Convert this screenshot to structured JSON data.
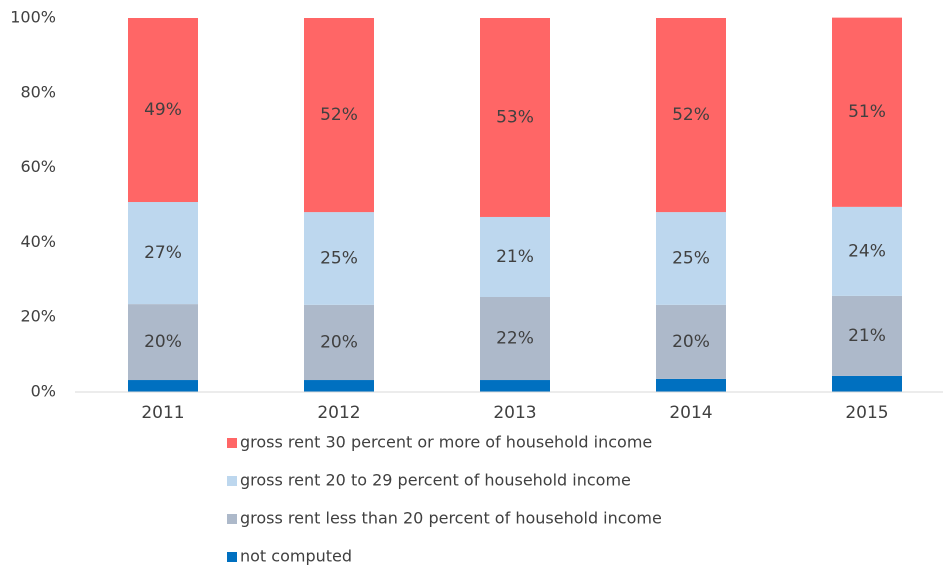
{
  "chart_data": {
    "type": "stacked_bar",
    "categories": [
      "2011",
      "2012",
      "2013",
      "2014",
      "2015"
    ],
    "series": [
      {
        "name": "not computed",
        "color": "#0070c0",
        "values": [
          3.2,
          3.2,
          3.2,
          3.5,
          4.3
        ]
      },
      {
        "name": "gross rent less than 20 percent of household income",
        "color": "#adb9ca",
        "values": [
          20.3,
          20.1,
          22.2,
          19.8,
          21.4
        ],
        "value_labels": [
          "20%",
          "20%",
          "22%",
          "20%",
          "21%"
        ]
      },
      {
        "name": "gross rent 20 to 29 percent of household income",
        "color": "#bdd7ee",
        "values": [
          27.3,
          24.8,
          21.4,
          24.8,
          23.8
        ],
        "value_labels": [
          "27%",
          "25%",
          "21%",
          "25%",
          "24%"
        ]
      },
      {
        "name": "gross rent 30 percent or more of household income",
        "color": "#ff6666",
        "values": [
          49.2,
          51.9,
          53.2,
          51.9,
          50.6
        ],
        "value_labels": [
          "49%",
          "52%",
          "53%",
          "52%",
          "51%"
        ]
      }
    ],
    "ylim": [
      0,
      100
    ],
    "yticks": [
      {
        "value": 0,
        "label": "0%"
      },
      {
        "value": 20,
        "label": "20%"
      },
      {
        "value": 40,
        "label": "40%"
      },
      {
        "value": 60,
        "label": "60%"
      },
      {
        "value": 80,
        "label": "80%"
      },
      {
        "value": 100,
        "label": "100%"
      }
    ],
    "grid": false
  }
}
